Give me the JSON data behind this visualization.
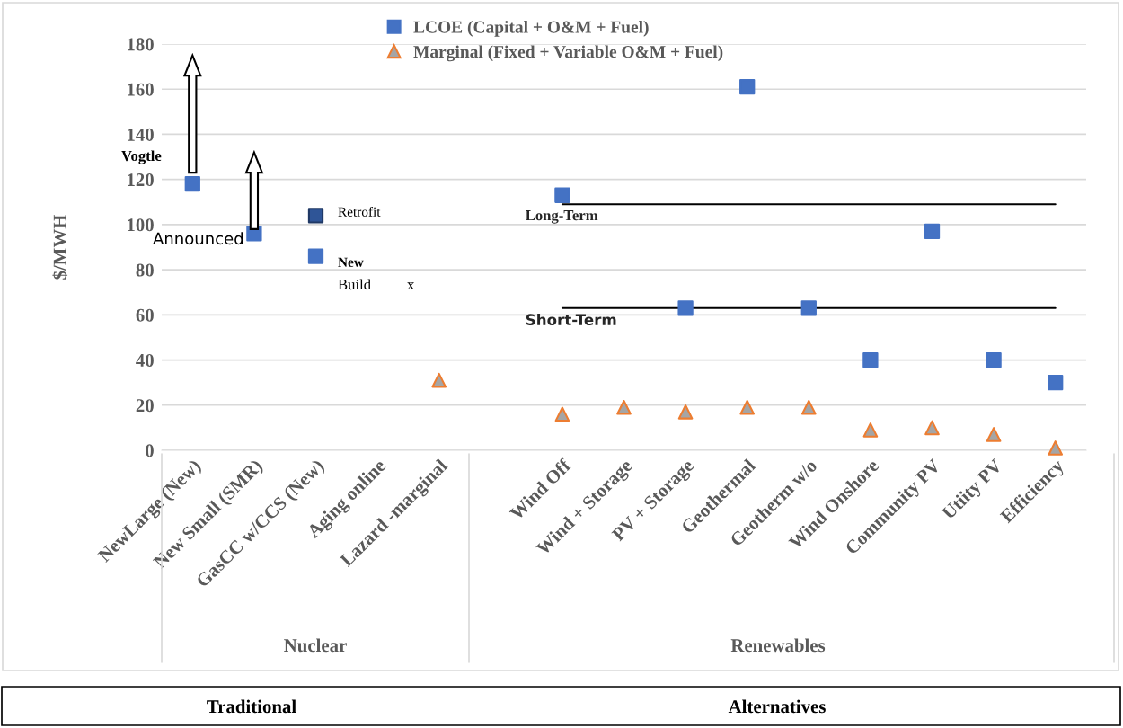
{
  "chart_data": {
    "type": "scatter",
    "ylabel": "$/MWH",
    "categories": [
      "NewLarge (New)",
      "New Small (SMR)",
      "GasCC w/CCS (New)",
      "Aging online",
      "Lazard -marginal",
      null,
      "Wind Off",
      "Wind + Storage",
      "PV + Storage",
      "Geothermal",
      "Geotherm w/o",
      "Wind Onshore",
      "Community PV",
      "Utiity PV",
      "Efficiency"
    ],
    "series": [
      {
        "name": "LCOE (Capital + O&M + Fuel)",
        "color": "#4472c4",
        "marker": "square",
        "values": [
          118,
          96,
          86,
          null,
          null,
          null,
          113,
          null,
          63,
          161,
          63,
          40,
          97,
          40,
          30
        ]
      },
      {
        "name": "Marginal (Fixed + Variable O&M + Fuel)",
        "color": "#ed7d31",
        "marker": "triangle",
        "values": [
          null,
          null,
          null,
          null,
          31,
          null,
          16,
          19,
          17,
          19,
          19,
          9,
          10,
          7,
          1
        ]
      },
      {
        "color": "#2f5597",
        "marker": "square",
        "values": [
          null,
          null,
          104,
          null,
          null,
          null,
          null,
          null,
          null,
          null,
          null,
          null,
          null,
          null,
          null
        ]
      },
      {
        "type": "line",
        "name": "Long-Term",
        "color": "#000000",
        "marker": "none",
        "values": [
          null,
          null,
          null,
          null,
          null,
          null,
          109,
          109,
          109,
          109,
          109,
          109,
          109,
          109,
          109
        ]
      },
      {
        "type": "line",
        "name": "Short-Term",
        "color": "#000000",
        "marker": "none",
        "values": [
          null,
          null,
          null,
          null,
          null,
          null,
          63,
          63,
          63,
          63,
          63,
          63,
          63,
          63,
          63
        ]
      }
    ],
    "ylim": [
      0,
      180
    ],
    "yticks": [
      0,
      20,
      40,
      60,
      80,
      100,
      120,
      140,
      160,
      180
    ],
    "grid": "y",
    "legend": "top",
    "annotations": [
      "Vogtle",
      "Announced",
      "Retrofit",
      "New",
      "Build",
      "x",
      "Nuclear",
      "Renewables",
      "Traditional",
      "Alternatives"
    ]
  }
}
